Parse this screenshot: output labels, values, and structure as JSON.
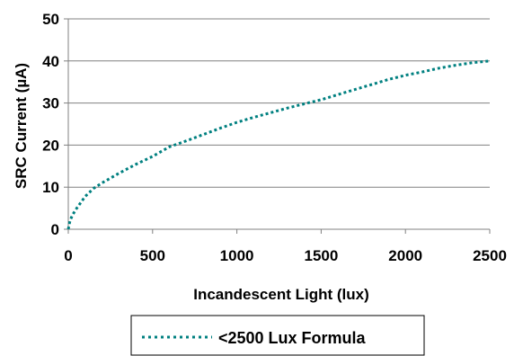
{
  "chart_data": {
    "type": "line",
    "title": "",
    "xlabel": "Incandescent Light (lux)",
    "ylabel": "SRC Current (µA)",
    "xlim": [
      0,
      2500
    ],
    "ylim": [
      0,
      50
    ],
    "x_ticks": [
      "0",
      "500",
      "1000",
      "1500",
      "2000",
      "2500"
    ],
    "y_ticks": [
      "0",
      "10",
      "20",
      "30",
      "40",
      "50"
    ],
    "grid": "horizontal",
    "legend_position": "bottom",
    "series": [
      {
        "name": "<2500 Lux Formula",
        "color": "#008080",
        "line_style": "dotted",
        "points": [
          [
            0,
            0
          ],
          [
            10,
            2
          ],
          [
            25,
            3.4
          ],
          [
            50,
            5
          ],
          [
            100,
            7.8
          ],
          [
            150,
            9.7
          ],
          [
            200,
            11
          ],
          [
            300,
            13.3
          ],
          [
            400,
            15.4
          ],
          [
            500,
            17.3
          ],
          [
            600,
            19.6
          ],
          [
            700,
            21
          ],
          [
            800,
            22.5
          ],
          [
            900,
            24
          ],
          [
            1000,
            25.4
          ],
          [
            1100,
            26.6
          ],
          [
            1200,
            27.7
          ],
          [
            1300,
            28.8
          ],
          [
            1400,
            29.8
          ],
          [
            1500,
            30.8
          ],
          [
            1600,
            32
          ],
          [
            1700,
            33.2
          ],
          [
            1800,
            34.4
          ],
          [
            1900,
            35.6
          ],
          [
            2000,
            36.6
          ],
          [
            2100,
            37.4
          ],
          [
            2200,
            38.3
          ],
          [
            2300,
            39
          ],
          [
            2400,
            39.6
          ],
          [
            2500,
            40
          ]
        ]
      }
    ]
  }
}
